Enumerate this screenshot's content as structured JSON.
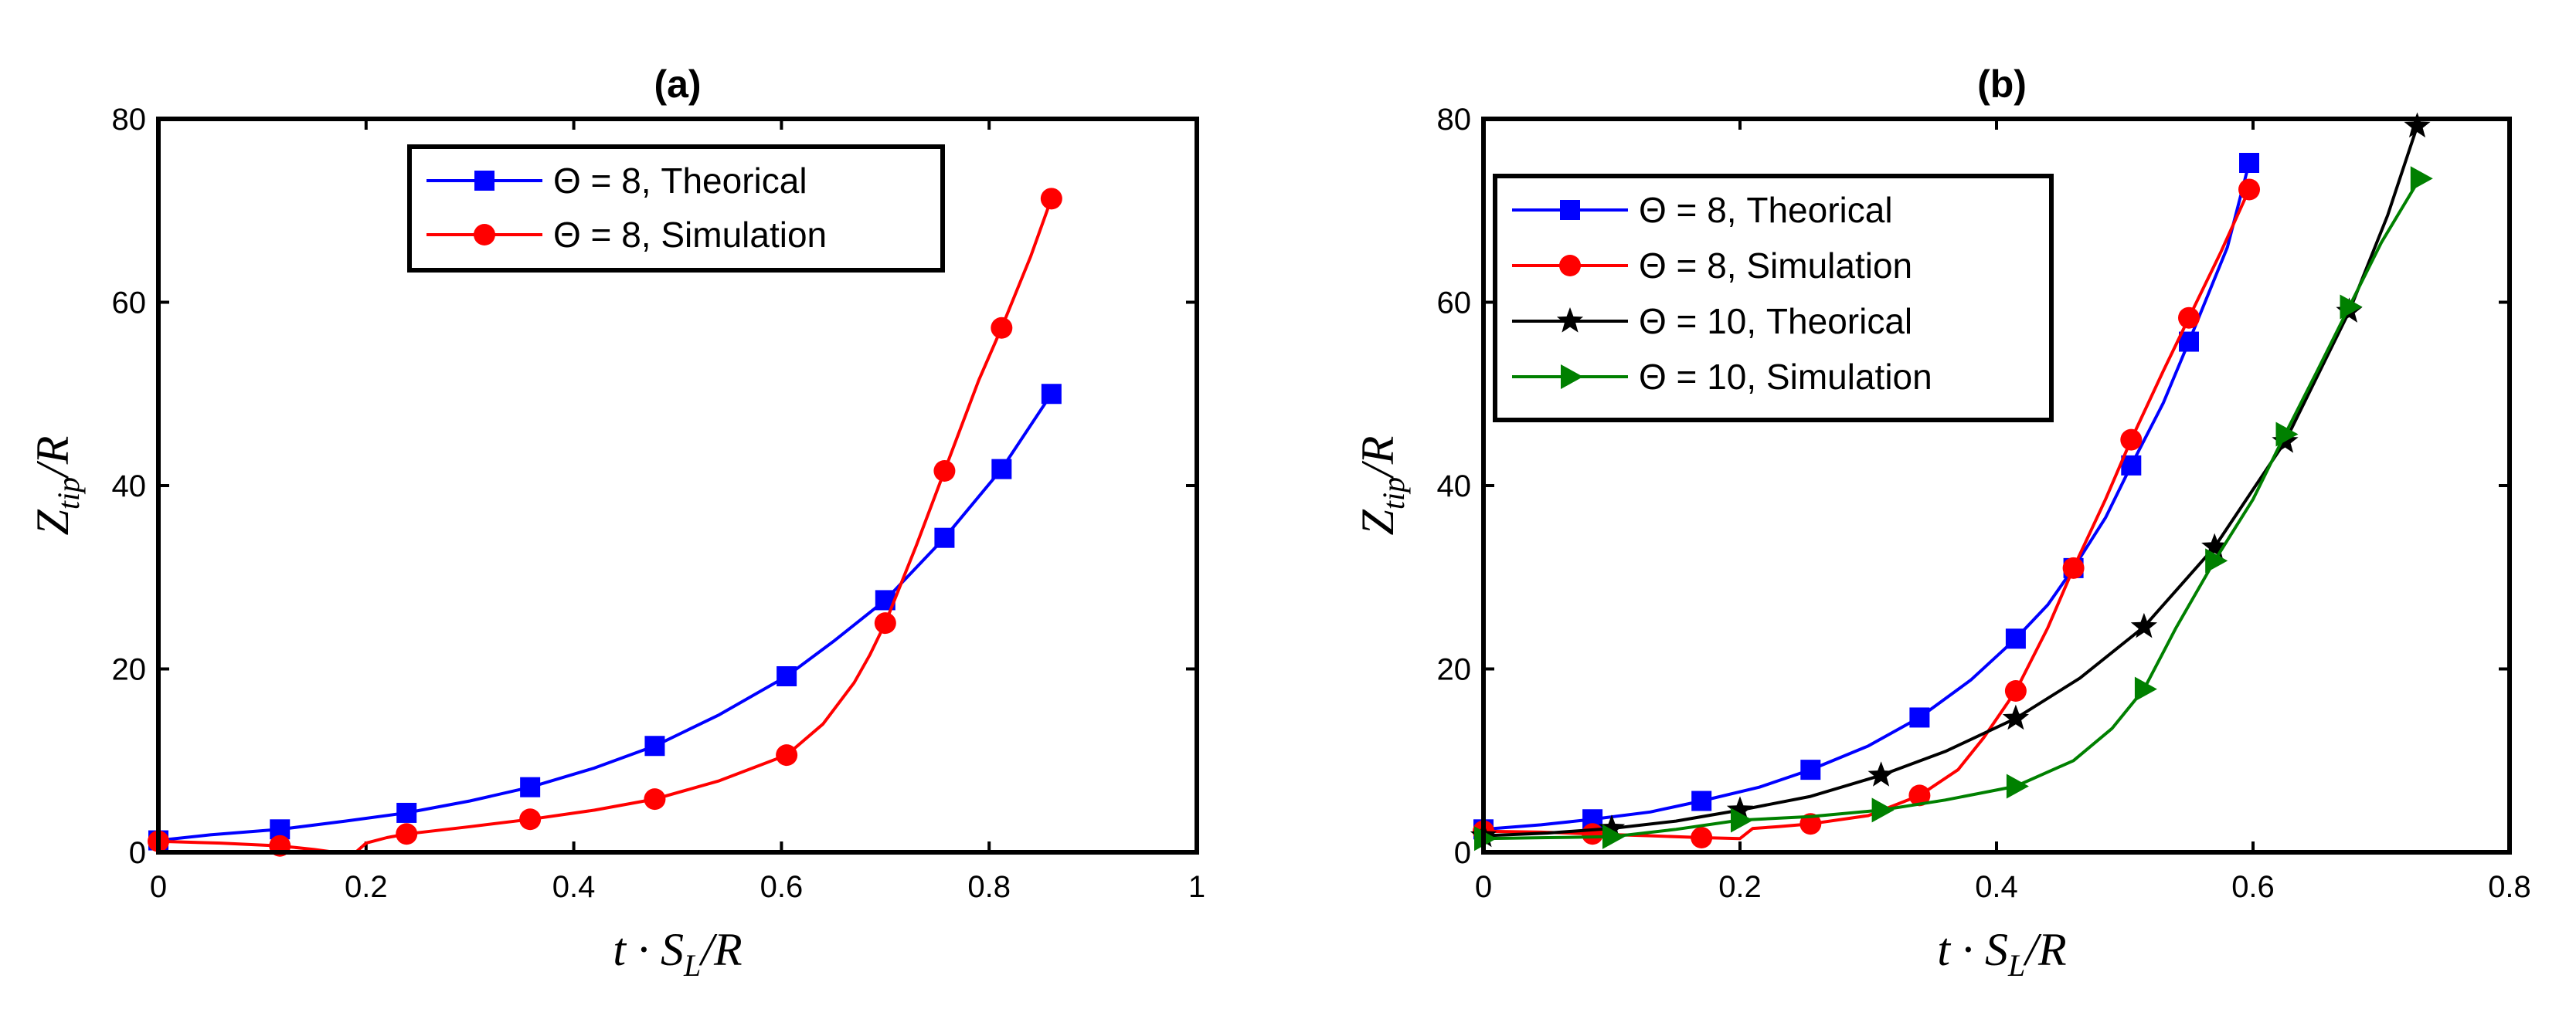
{
  "chart_data": [
    {
      "type": "line",
      "title": "(a)",
      "xlabel": "t · S_L/R",
      "ylabel": "Z_tip/R",
      "xlim": [
        0,
        1
      ],
      "ylim": [
        0,
        80
      ],
      "xticks": [
        0,
        0.2,
        0.4,
        0.6,
        0.8,
        1
      ],
      "xtick_labels": [
        "0",
        "0.2",
        "0.4",
        "0.6",
        "0.8",
        "1"
      ],
      "yticks": [
        0,
        20,
        40,
        60,
        80
      ],
      "ytick_labels": [
        "0",
        "20",
        "40",
        "60",
        "80"
      ],
      "grid": false,
      "legend_position": "top-center",
      "series": [
        {
          "name": "Θ = 8, Theorical",
          "color": "#0000ff",
          "marker": "square",
          "line_x": [
            0,
            0.05,
            0.117,
            0.18,
            0.239,
            0.3,
            0.358,
            0.42,
            0.478,
            0.54,
            0.605,
            0.65,
            0.7,
            0.757,
            0.812,
            0.86
          ],
          "line_y": [
            1.3,
            1.9,
            2.5,
            3.4,
            4.3,
            5.6,
            7.1,
            9.2,
            11.6,
            15.0,
            19.2,
            23.0,
            27.5,
            34.3,
            41.8,
            50.0
          ],
          "marker_x": [
            0,
            0.117,
            0.239,
            0.358,
            0.478,
            0.605,
            0.7,
            0.757,
            0.812,
            0.86
          ],
          "marker_y": [
            1.3,
            2.5,
            4.3,
            7.1,
            11.6,
            19.2,
            27.5,
            34.3,
            41.8,
            50.0
          ]
        },
        {
          "name": "Θ = 8, Simulation",
          "color": "#ff0000",
          "marker": "circle",
          "line_x": [
            0,
            0.06,
            0.117,
            0.15,
            0.17,
            0.19,
            0.2,
            0.22,
            0.239,
            0.3,
            0.358,
            0.42,
            0.478,
            0.54,
            0.605,
            0.64,
            0.67,
            0.685,
            0.7,
            0.73,
            0.757,
            0.79,
            0.812,
            0.84,
            0.86
          ],
          "line_y": [
            1.2,
            1.0,
            0.7,
            0.3,
            0.0,
            0.0,
            1.0,
            1.6,
            2.0,
            2.8,
            3.6,
            4.6,
            5.8,
            7.8,
            10.6,
            14.0,
            18.5,
            21.5,
            25.0,
            33.5,
            41.6,
            51.5,
            57.2,
            65.0,
            71.3
          ],
          "marker_x": [
            0,
            0.117,
            0.239,
            0.358,
            0.478,
            0.605,
            0.7,
            0.757,
            0.812,
            0.86
          ],
          "marker_y": [
            1.2,
            0.7,
            2.0,
            3.6,
            5.8,
            10.6,
            25.0,
            41.6,
            57.2,
            71.3
          ]
        }
      ]
    },
    {
      "type": "line",
      "title": "(b)",
      "xlabel": "t · S_L/R",
      "ylabel": "Z_tip/R",
      "xlim": [
        0,
        0.8
      ],
      "ylim": [
        0,
        80
      ],
      "xticks": [
        0,
        0.2,
        0.4,
        0.6,
        0.8
      ],
      "xtick_labels": [
        "0",
        "0.2",
        "0.4",
        "0.6",
        "0.8"
      ],
      "yticks": [
        0,
        20,
        40,
        60,
        80
      ],
      "ytick_labels": [
        "0",
        "20",
        "40",
        "60",
        "80"
      ],
      "grid": false,
      "legend_position": "top-left",
      "series": [
        {
          "name": "Θ = 8, Theorical",
          "color": "#0000ff",
          "marker": "square",
          "line_x": [
            0,
            0.045,
            0.085,
            0.13,
            0.17,
            0.215,
            0.255,
            0.3,
            0.34,
            0.38,
            0.415,
            0.44,
            0.46,
            0.485,
            0.505,
            0.53,
            0.55,
            0.58,
            0.597
          ],
          "line_y": [
            2.5,
            3.0,
            3.6,
            4.4,
            5.6,
            7.1,
            9.0,
            11.6,
            14.7,
            18.8,
            23.3,
            27.0,
            31.0,
            36.5,
            42.2,
            49.0,
            55.7,
            66.0,
            75.2
          ],
          "marker_x": [
            0,
            0.085,
            0.17,
            0.255,
            0.34,
            0.415,
            0.46,
            0.505,
            0.55,
            0.597
          ],
          "marker_y": [
            2.5,
            3.6,
            5.6,
            9.0,
            14.7,
            23.3,
            31.0,
            42.2,
            55.7,
            75.2
          ]
        },
        {
          "name": "Θ = 8, Simulation",
          "color": "#ff0000",
          "marker": "circle",
          "line_x": [
            0,
            0.045,
            0.085,
            0.13,
            0.17,
            0.2,
            0.21,
            0.23,
            0.255,
            0.3,
            0.34,
            0.37,
            0.39,
            0.415,
            0.44,
            0.46,
            0.485,
            0.505,
            0.53,
            0.55,
            0.575,
            0.597
          ],
          "line_y": [
            2.3,
            2.2,
            2.0,
            1.8,
            1.6,
            1.5,
            2.6,
            2.8,
            3.1,
            4.0,
            6.2,
            9.0,
            12.5,
            17.6,
            24.5,
            31.0,
            38.5,
            45.0,
            52.5,
            58.3,
            65.5,
            72.3
          ],
          "marker_x": [
            0,
            0.085,
            0.17,
            0.255,
            0.34,
            0.415,
            0.46,
            0.505,
            0.55,
            0.597
          ],
          "marker_y": [
            2.3,
            2.0,
            1.6,
            3.1,
            6.2,
            17.6,
            31.0,
            45.0,
            58.3,
            72.3
          ]
        },
        {
          "name": "Θ = 10, Theorical",
          "color": "#000000",
          "marker": "star",
          "line_x": [
            0,
            0.05,
            0.1,
            0.15,
            0.2,
            0.255,
            0.31,
            0.36,
            0.415,
            0.465,
            0.515,
            0.57,
            0.625,
            0.675,
            0.705,
            0.728
          ],
          "line_y": [
            1.8,
            2.1,
            2.6,
            3.4,
            4.6,
            6.1,
            8.4,
            11.0,
            14.6,
            19.0,
            24.6,
            33.3,
            44.8,
            59.0,
            69.5,
            79.2
          ],
          "marker_x": [
            0,
            0.1,
            0.2,
            0.31,
            0.415,
            0.515,
            0.57,
            0.625,
            0.675,
            0.728
          ],
          "marker_y": [
            1.8,
            2.6,
            4.6,
            8.4,
            14.6,
            24.6,
            33.3,
            44.8,
            59.0,
            79.2
          ]
        },
        {
          "name": "Θ = 10, Simulation",
          "color": "#008000",
          "marker": "triangle-right",
          "line_x": [
            0,
            0.05,
            0.1,
            0.15,
            0.2,
            0.255,
            0.31,
            0.36,
            0.415,
            0.46,
            0.49,
            0.515,
            0.54,
            0.57,
            0.6,
            0.625,
            0.65,
            0.675,
            0.7,
            0.73
          ],
          "line_y": [
            1.5,
            1.6,
            1.7,
            2.5,
            3.5,
            3.9,
            4.6,
            5.7,
            7.2,
            10.0,
            13.5,
            17.8,
            24.5,
            31.8,
            38.5,
            45.6,
            52.5,
            59.5,
            66.5,
            73.5
          ],
          "marker_x": [
            0,
            0.1,
            0.2,
            0.31,
            0.415,
            0.515,
            0.57,
            0.625,
            0.675,
            0.73
          ],
          "marker_y": [
            1.5,
            1.7,
            3.5,
            4.6,
            7.2,
            17.8,
            31.8,
            45.6,
            59.5,
            73.5
          ]
        }
      ]
    }
  ]
}
